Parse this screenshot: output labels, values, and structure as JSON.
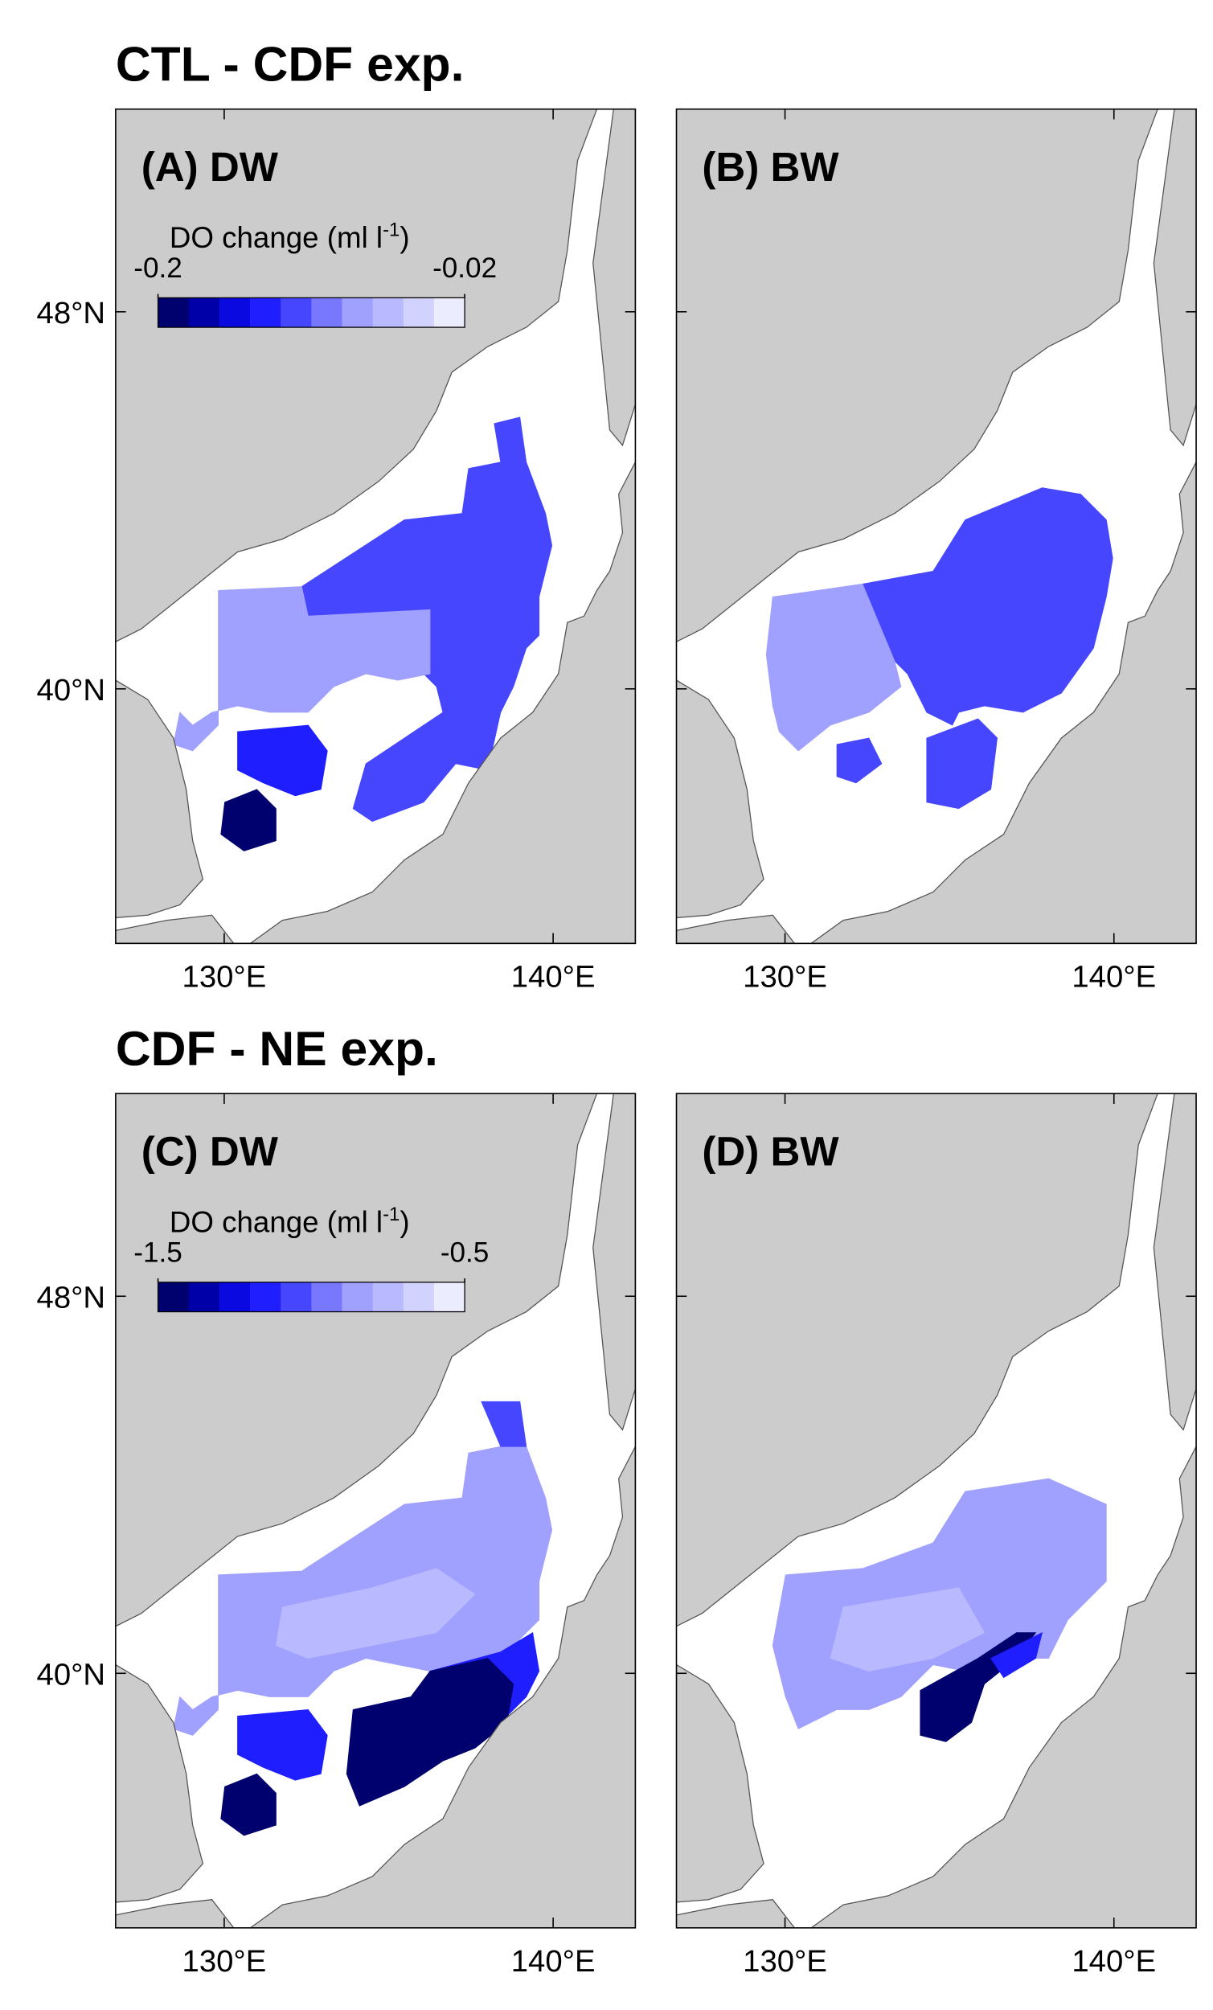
{
  "figure": {
    "rows": [
      {
        "title": "CTL - CDF exp.",
        "panels": [
          {
            "label": "(A) DW",
            "xlim": [
              126.7,
              142.5
            ],
            "ylim": [
              34.6,
              52.3
            ],
            "xticks": [
              {
                "value": 130,
                "label": "130°E"
              },
              {
                "value": 140,
                "label": "140°E"
              }
            ],
            "yticks": [
              {
                "value": 40,
                "label": "40°N"
              },
              {
                "value": 48,
                "label": "48°N"
              }
            ],
            "colorbar": {
              "label": "DO change (ml l",
              "label_exponent": "-1",
              "label_end": ")",
              "range": [
                -0.2,
                -0.02
              ],
              "ticks": [
                -0.2,
                -0.02
              ],
              "colors": [
                "#00006e",
                "#0000a8",
                "#0a0ae0",
                "#1e1eff",
                "#4646ff",
                "#7878ff",
                "#a0a0ff",
                "#b9b9ff",
                "#d2d2ff",
                "#ececff"
              ]
            }
          },
          {
            "label": "(B) BW",
            "xlim": [
              126.7,
              142.5
            ],
            "ylim": [
              34.6,
              52.3
            ],
            "xticks": [
              {
                "value": 130,
                "label": "130°E"
              },
              {
                "value": 140,
                "label": "140°E"
              }
            ],
            "yticks": [
              40,
              48
            ],
            "show_ytick_labels": false
          }
        ]
      },
      {
        "title": "CDF - NE exp.",
        "panels": [
          {
            "label": "(C) DW",
            "xlim": [
              126.7,
              142.5
            ],
            "ylim": [
              34.6,
              52.3
            ],
            "xticks": [
              {
                "value": 130,
                "label": "130°E"
              },
              {
                "value": 140,
                "label": "140°E"
              }
            ],
            "yticks": [
              {
                "value": 40,
                "label": "40°N"
              },
              {
                "value": 48,
                "label": "48°N"
              }
            ],
            "colorbar": {
              "label": "DO change (ml l",
              "label_exponent": "-1",
              "label_end": ")",
              "range": [
                -1.5,
                -0.5
              ],
              "ticks": [
                -1.5,
                -0.5
              ],
              "colors": [
                "#00006e",
                "#0000a8",
                "#0a0ae0",
                "#1e1eff",
                "#4646ff",
                "#7878ff",
                "#a0a0ff",
                "#b9b9ff",
                "#d2d2ff",
                "#ececff"
              ]
            }
          },
          {
            "label": "(D) BW",
            "xlim": [
              126.7,
              142.5
            ],
            "ylim": [
              34.6,
              52.3
            ],
            "xticks": [
              {
                "value": 130,
                "label": "130°E"
              },
              {
                "value": 140,
                "label": "140°E"
              }
            ],
            "yticks": [
              40,
              48
            ],
            "show_ytick_labels": false
          }
        ]
      }
    ]
  }
}
